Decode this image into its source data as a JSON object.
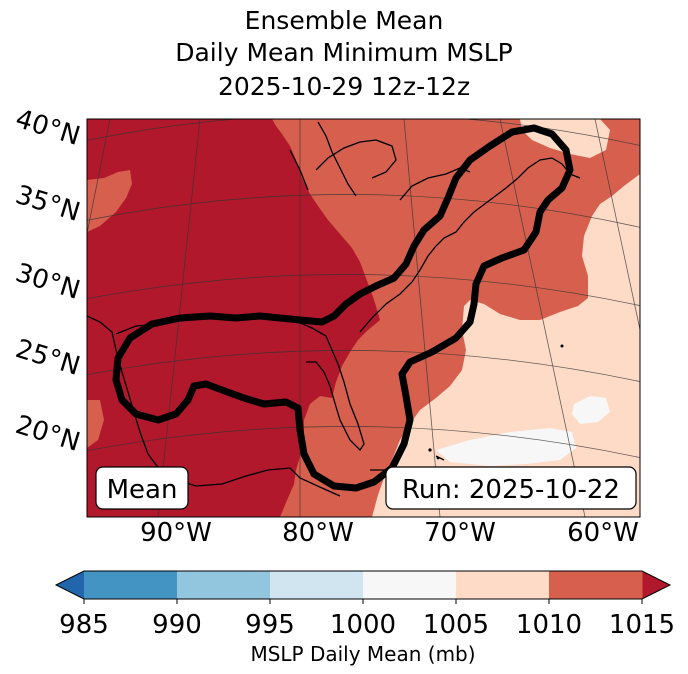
{
  "title": {
    "line1": "Ensemble Mean",
    "line2": "Daily Mean Minimum MSLP",
    "line3": "2025-10-29 12z-12z"
  },
  "map": {
    "lat_labels": [
      "40°N",
      "35°N",
      "30°N",
      "25°N",
      "20°N"
    ],
    "lon_labels": [
      "90°W",
      "80°W",
      "70°W",
      "60°W"
    ],
    "mean_label": "Mean",
    "run_label": "Run: 2025-10-22",
    "colors": {
      "c1010_1015": "#b2182b",
      "c1005_1010": "#d6604d",
      "c1000_1005": "#fddbc7",
      "c995_1000": "#f7f7f7"
    }
  },
  "colorbar": {
    "ticks": [
      "985",
      "990",
      "995",
      "1000",
      "1005",
      "1010",
      "1015"
    ],
    "colors": [
      "#4393c3",
      "#92c5de",
      "#d1e5f0",
      "#f7f7f7",
      "#fddbc7",
      "#d6604d"
    ],
    "under_color": "#2166ac",
    "over_color": "#b2182b",
    "label": "MSLP Daily Mean (mb)"
  }
}
